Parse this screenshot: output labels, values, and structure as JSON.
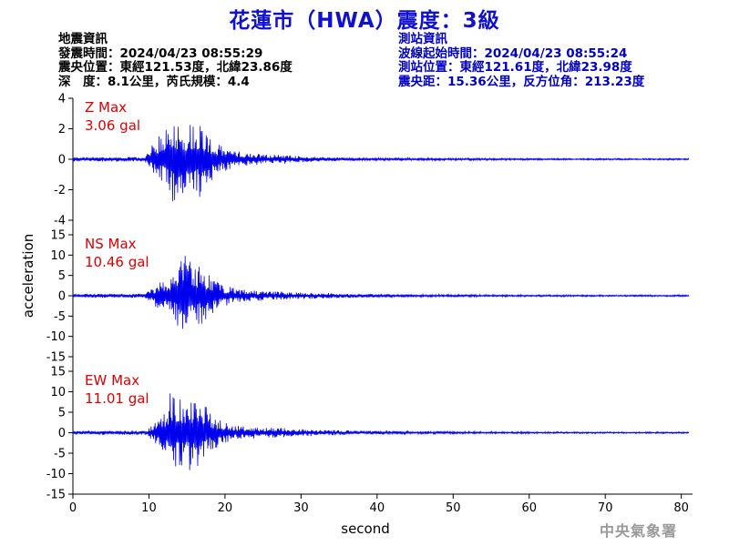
{
  "title": "花蓮市（HWA）震度：3級",
  "quake_info": {
    "heading": "地震資訊",
    "origin_time": "發震時間：2024/04/23 08:55:29",
    "epicenter": "震央位置：東經121.53度，北緯23.86度",
    "depth_magnitude": "深　度：8.1公里，芮氏規模：4.4"
  },
  "station_info": {
    "heading": "測站資訊",
    "wave_start": "波線起始時間：2024/04/23 08:55:24",
    "location": "測站位置：東經121.61度，北緯23.98度",
    "distance": "震央距：15.36公里，反方位角：213.23度"
  },
  "footer": "中央氣象署",
  "colors": {
    "title": "#1010d0",
    "trace": "#0000ee",
    "label": "#e00000",
    "station": "#0000c8"
  },
  "chart_data": [
    {
      "type": "line",
      "panel": "Z",
      "name": "Z Max",
      "max_value": "3.06 gal",
      "ylim": [
        -4,
        4
      ],
      "yticks": [
        -4,
        -2,
        0,
        2,
        4
      ],
      "x": [
        0,
        9.5,
        10,
        11,
        12,
        13,
        14,
        15,
        16,
        17,
        18,
        19,
        20,
        22,
        25,
        28,
        30,
        35,
        40,
        50,
        60,
        70,
        81
      ],
      "envelope": [
        0.15,
        0.15,
        0.6,
        1.4,
        1.8,
        3.06,
        2.4,
        2.2,
        2.8,
        2.4,
        1.5,
        1.0,
        0.8,
        0.5,
        0.35,
        0.3,
        0.2,
        0.12,
        0.1,
        0.08,
        0.06,
        0.05,
        0.05
      ]
    },
    {
      "type": "line",
      "panel": "NS",
      "name": "NS Max",
      "max_value": "10.46 gal",
      "ylim": [
        -15,
        15
      ],
      "yticks": [
        -15,
        -10,
        -5,
        0,
        5,
        10,
        15
      ],
      "x": [
        0,
        9.5,
        10,
        11,
        12,
        13,
        14,
        15,
        16,
        17,
        18,
        19,
        20,
        22,
        25,
        28,
        30,
        35,
        40,
        50,
        60,
        70,
        81
      ],
      "envelope": [
        0.5,
        0.5,
        1.2,
        3.0,
        4.5,
        6.0,
        8.0,
        10.46,
        8.5,
        7.0,
        5.5,
        3.5,
        2.5,
        1.6,
        1.2,
        1.0,
        0.8,
        0.6,
        0.4,
        0.3,
        0.25,
        0.2,
        0.2
      ]
    },
    {
      "type": "line",
      "panel": "EW",
      "name": "EW Max",
      "max_value": "11.01 gal",
      "ylim": [
        -15,
        15
      ],
      "yticks": [
        -15,
        -10,
        -5,
        0,
        5,
        10,
        15
      ],
      "x": [
        0,
        9.5,
        10,
        11,
        12,
        13,
        14,
        15,
        16,
        17,
        18,
        19,
        20,
        22,
        25,
        28,
        30,
        35,
        40,
        50,
        60,
        70,
        81
      ],
      "envelope": [
        0.5,
        0.5,
        1.2,
        3.0,
        5.0,
        11.01,
        8.0,
        9.0,
        10.0,
        8.0,
        5.0,
        3.5,
        2.5,
        1.6,
        1.3,
        1.1,
        0.9,
        0.6,
        0.4,
        0.3,
        0.25,
        0.2,
        0.2
      ]
    }
  ],
  "axes": {
    "ylabel": "acceleration",
    "xlabel": "second",
    "xlim": [
      0,
      81
    ],
    "xticks": [
      0,
      10,
      20,
      30,
      40,
      50,
      60,
      70,
      80
    ]
  }
}
